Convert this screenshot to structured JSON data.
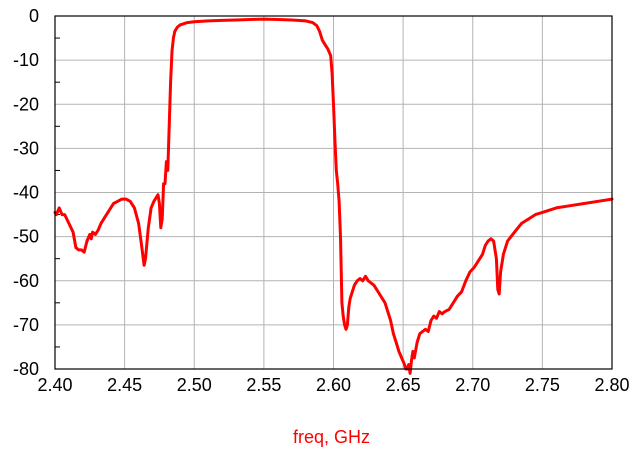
{
  "chart_data": {
    "type": "line",
    "title": "",
    "xlabel": "freq, GHz",
    "ylabel": "",
    "xlim": [
      2.4,
      2.8
    ],
    "ylim": [
      -80,
      0
    ],
    "grid": true,
    "x_ticks": [
      "2.40",
      "2.45",
      "2.50",
      "2.55",
      "2.60",
      "2.65",
      "2.70",
      "2.75",
      "2.80"
    ],
    "y_ticks": [
      "0",
      "-10",
      "-20",
      "-30",
      "-40",
      "-50",
      "-60",
      "-70",
      "-80"
    ],
    "colors": {
      "series": "#ff0000",
      "xlabel": "#ff0000",
      "grid": "#b3b3b3",
      "frame": "#000000"
    },
    "series": [
      {
        "x": [
          2.4,
          2.401,
          2.403,
          2.405,
          2.407,
          2.41,
          2.413,
          2.415,
          2.417,
          2.419,
          2.421,
          2.423,
          2.425,
          2.426,
          2.427,
          2.429,
          2.431,
          2.433,
          2.436,
          2.439,
          2.442,
          2.445,
          2.448,
          2.451,
          2.454,
          2.457,
          2.46,
          2.462,
          2.464,
          2.465,
          2.467,
          2.469,
          2.471,
          2.472,
          2.474,
          2.475,
          2.476,
          2.477,
          2.478,
          2.479,
          2.48,
          2.481,
          2.482,
          2.483,
          2.484,
          2.485,
          2.486,
          2.487,
          2.488,
          2.49,
          2.492,
          2.495,
          2.5,
          2.51,
          2.52,
          2.53,
          2.54,
          2.55,
          2.56,
          2.57,
          2.58,
          2.585,
          2.588,
          2.59,
          2.592,
          2.594,
          2.596,
          2.598,
          2.599,
          2.6,
          2.601,
          2.602,
          2.603,
          2.604,
          2.605,
          2.606,
          2.607,
          2.608,
          2.609,
          2.61,
          2.611,
          2.612,
          2.613,
          2.615,
          2.617,
          2.619,
          2.621,
          2.623,
          2.625,
          2.627,
          2.629,
          2.631,
          2.633,
          2.635,
          2.637,
          2.639,
          2.641,
          2.643,
          2.645,
          2.647,
          2.649,
          2.651,
          2.652,
          2.653,
          2.654,
          2.655,
          2.656,
          2.657,
          2.658,
          2.66,
          2.662,
          2.664,
          2.666,
          2.668,
          2.67,
          2.672,
          2.674,
          2.676,
          2.678,
          2.68,
          2.683,
          2.686,
          2.689,
          2.692,
          2.695,
          2.698,
          2.701,
          2.704,
          2.707,
          2.709,
          2.711,
          2.713,
          2.715,
          2.717,
          2.718,
          2.719,
          2.72,
          2.722,
          2.725,
          2.73,
          2.735,
          2.74,
          2.745,
          2.75,
          2.76,
          2.77,
          2.78,
          2.79,
          2.8
        ],
        "values": [
          -44.5,
          -45,
          -43.5,
          -45,
          -45,
          -47,
          -49,
          -52.5,
          -53,
          -53,
          -53.5,
          -51,
          -49.5,
          -50.5,
          -49,
          -49.5,
          -48.5,
          -47,
          -45.5,
          -44,
          -42.5,
          -42,
          -41.5,
          -41.5,
          -42,
          -43.5,
          -47,
          -51.5,
          -56.5,
          -55,
          -48,
          -43.5,
          -42,
          -41.5,
          -40.5,
          -42.5,
          -48,
          -46,
          -38,
          -38,
          -33,
          -35,
          -25,
          -15,
          -8,
          -5,
          -3.5,
          -3,
          -2.5,
          -2,
          -1.8,
          -1.5,
          -1.3,
          -1.1,
          -1.0,
          -0.9,
          -0.8,
          -0.7,
          -0.8,
          -0.9,
          -1.1,
          -1.5,
          -2.2,
          -3.5,
          -5.5,
          -6.5,
          -7.5,
          -9,
          -13,
          -20,
          -28,
          -35,
          -38,
          -42,
          -50,
          -65,
          -68,
          -70,
          -71,
          -70,
          -66,
          -64,
          -63,
          -61,
          -60,
          -59.5,
          -60,
          -59,
          -60,
          -60.5,
          -61,
          -62,
          -63,
          -64,
          -65,
          -67,
          -69,
          -72,
          -74,
          -76,
          -77.5,
          -79,
          -80,
          -80,
          -79,
          -81,
          -78,
          -76,
          -77.5,
          -74,
          -72,
          -71.5,
          -71,
          -71.5,
          -69,
          -68,
          -68.5,
          -67,
          -67.5,
          -67,
          -66.5,
          -65,
          -63.5,
          -62.5,
          -60,
          -58,
          -57,
          -55.5,
          -54,
          -52,
          -51,
          -50.5,
          -51,
          -55,
          -62,
          -63,
          -58,
          -54,
          -51,
          -49,
          -47,
          -46,
          -45,
          -44.5,
          -43.5,
          -43,
          -42.5,
          -42,
          -41.5
        ]
      }
    ]
  }
}
